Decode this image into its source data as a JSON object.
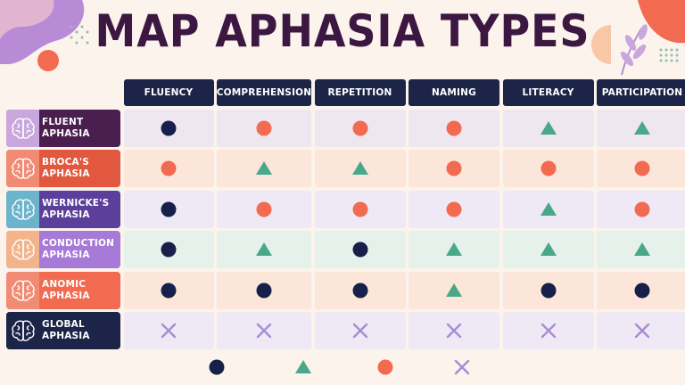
{
  "title": "MAP APHASIA TYPES",
  "colors": {
    "background": "#fbf3ec",
    "header": "#1c2447",
    "title": "#3b1742",
    "dot": "#16204a",
    "triangle": "#4aa88a",
    "circle_orange": "#f26a4f",
    "cross": "#a98bd8"
  },
  "columns": [
    "FLUENCY",
    "COMPREHENSION",
    "REPETITION",
    "NAMING",
    "LITERACY",
    "PARTICIPATION"
  ],
  "rows": [
    {
      "line1": "FLUENT",
      "line2": "APHASIA",
      "icon": "brain-icon",
      "label_color": "#4a1e4f",
      "icon_bg": "#c9a7dc",
      "cell_bg": "#efe7ef",
      "marks": [
        "dot",
        "orange",
        "orange",
        "orange",
        "triangle",
        "triangle"
      ]
    },
    {
      "line1": "BROCA'S",
      "line2": "APHASIA",
      "icon": "brain-icon",
      "label_color": "#e2583f",
      "icon_bg": "#f28b73",
      "cell_bg": "#fbe6d9",
      "marks": [
        "orange",
        "triangle",
        "triangle",
        "orange",
        "orange",
        "orange"
      ]
    },
    {
      "line1": "WERNICKE'S",
      "line2": "APHASIA",
      "icon": "brain-icon",
      "label_color": "#5b3f9a",
      "icon_bg": "#6cb3cc",
      "cell_bg": "#efe9f6",
      "marks": [
        "dot",
        "orange",
        "orange",
        "orange",
        "triangle",
        "orange"
      ]
    },
    {
      "line1": "CONDUCTION",
      "line2": "APHASIA",
      "icon": "brain-icon",
      "label_color": "#a67ad6",
      "icon_bg": "#f3b48c",
      "cell_bg": "#e6f1ec",
      "marks": [
        "dot",
        "triangle",
        "dot",
        "triangle",
        "triangle",
        "triangle"
      ]
    },
    {
      "line1": "ANOMIC",
      "line2": "APHASIA",
      "icon": "brain-icon",
      "label_color": "#f26a4f",
      "icon_bg": "#f28b73",
      "cell_bg": "#fbe6d9",
      "marks": [
        "dot",
        "dot",
        "dot",
        "triangle",
        "dot",
        "dot"
      ]
    },
    {
      "line1": "GLOBAL",
      "line2": "APHASIA",
      "icon": "brain-icon",
      "label_color": "#1c2447",
      "icon_bg": "#1c2447",
      "cell_bg": "#efe9f6",
      "marks": [
        "cross",
        "cross",
        "cross",
        "cross",
        "cross",
        "cross"
      ]
    }
  ],
  "legend": [
    "dot",
    "triangle",
    "orange",
    "cross"
  ]
}
